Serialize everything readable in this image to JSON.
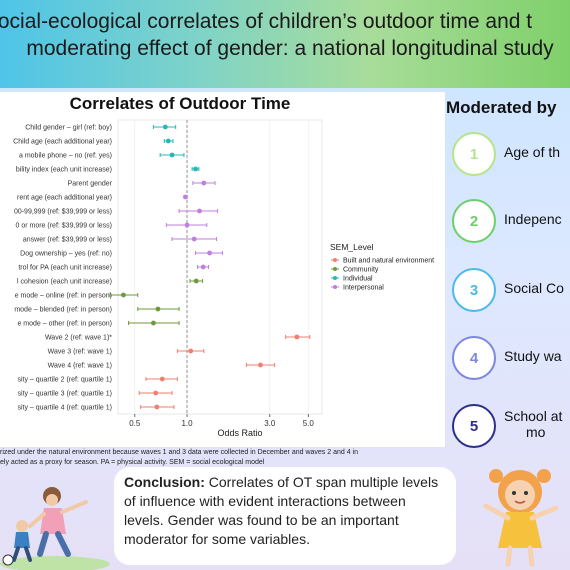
{
  "title": {
    "line1": "ocial-ecological correlates of children’s outdoor time and t",
    "line2": "moderating effect of gender: a national longitudinal study"
  },
  "chart_data": {
    "type": "scatter",
    "subtype": "forest-plot",
    "title": "Correlates of Outdoor Time",
    "xlabel": "Odds Ratio",
    "xscale": "log",
    "xlim": [
      0.4,
      6.0
    ],
    "xticks": [
      0.5,
      1.0,
      3.0,
      5.0
    ],
    "xtick_labels": [
      "0.5",
      "1.0",
      "3.0",
      "5.0"
    ],
    "reference_line": 1.0,
    "legend": {
      "title": "SEM_Level",
      "placement": "right",
      "entries": [
        {
          "name": "Built and natural environment",
          "color": "#f07f6d"
        },
        {
          "name": "Community",
          "color": "#6f9a3b"
        },
        {
          "name": "Individual",
          "color": "#25b8b8"
        },
        {
          "name": "Interpersonal",
          "color": "#c07ee0"
        }
      ]
    },
    "rows": [
      {
        "label": "Child gender – girl (ref: boy)",
        "or": 0.75,
        "lo": 0.64,
        "hi": 0.86,
        "level": "Individual"
      },
      {
        "label": "Child age (each additional year)",
        "or": 0.78,
        "lo": 0.74,
        "hi": 0.83,
        "level": "Individual"
      },
      {
        "label": "a mobile phone – no (ref: yes)",
        "or": 0.82,
        "lo": 0.7,
        "hi": 0.96,
        "level": "Individual"
      },
      {
        "label": "bility index (each unit increase)",
        "or": 1.12,
        "lo": 1.07,
        "hi": 1.17,
        "level": "Individual"
      },
      {
        "label": "Parent gender",
        "or": 1.25,
        "lo": 1.08,
        "hi": 1.45,
        "level": "Interpersonal"
      },
      {
        "label": "rent age (each additional year)",
        "or": 0.98,
        "lo": 0.96,
        "hi": 1.0,
        "level": "Interpersonal"
      },
      {
        "label": "00-99,999 (ref: $39,999 or less)",
        "or": 1.18,
        "lo": 0.9,
        "hi": 1.5,
        "level": "Interpersonal"
      },
      {
        "label": "0 or more (ref: $39,999 or less)",
        "or": 1.0,
        "lo": 0.76,
        "hi": 1.3,
        "level": "Interpersonal"
      },
      {
        "label": "answer (ref: $39,999 or less)",
        "or": 1.1,
        "lo": 0.82,
        "hi": 1.48,
        "level": "Interpersonal"
      },
      {
        "label": "Dog ownership – yes (ref: no)",
        "or": 1.35,
        "lo": 1.12,
        "hi": 1.6,
        "level": "Interpersonal"
      },
      {
        "label": "trol for PA (each unit increase)",
        "or": 1.24,
        "lo": 1.15,
        "hi": 1.33,
        "level": "Interpersonal"
      },
      {
        "label": "l cohesion (each unit increase)",
        "or": 1.13,
        "lo": 1.04,
        "hi": 1.23,
        "level": "Community"
      },
      {
        "label": "e mode – online (ref: in person)",
        "or": 0.43,
        "lo": 0.36,
        "hi": 0.52,
        "level": "Community"
      },
      {
        "label": "mode – blended (ref: in person)",
        "or": 0.68,
        "lo": 0.52,
        "hi": 0.9,
        "level": "Community"
      },
      {
        "label": "e mode – other (ref: in person)",
        "or": 0.64,
        "lo": 0.46,
        "hi": 0.9,
        "level": "Community"
      },
      {
        "label": "Wave 2 (ref: wave 1)*",
        "or": 4.3,
        "lo": 3.7,
        "hi": 5.1,
        "level": "Built and natural environment"
      },
      {
        "label": "Wave 3 (ref: wave 1)",
        "or": 1.05,
        "lo": 0.88,
        "hi": 1.25,
        "level": "Built and natural environment"
      },
      {
        "label": "Wave 4 (ref: wave 1)",
        "or": 2.65,
        "lo": 2.2,
        "hi": 3.2,
        "level": "Built and natural environment"
      },
      {
        "label": "sity – quartile 2 (ref: quartile 1)",
        "or": 0.72,
        "lo": 0.58,
        "hi": 0.88,
        "level": "Built and natural environment"
      },
      {
        "label": "sity – quartile 3 (ref: quartile 1)",
        "or": 0.66,
        "lo": 0.53,
        "hi": 0.82,
        "level": "Built and natural environment"
      },
      {
        "label": "sity – quartile 4 (ref: quartile 1)",
        "or": 0.67,
        "lo": 0.54,
        "hi": 0.84,
        "level": "Built and natural environment"
      }
    ]
  },
  "caption": {
    "line1": "rized under the natural environment because waves 1 and 3 data were collected in December and waves 2 and 4 in",
    "line2": "ely acted as a proxy for season. PA = physical activity. SEM = social ecological model"
  },
  "moderated": {
    "title": "Moderated by",
    "items": [
      {
        "num": "1",
        "label": "Age of th",
        "color": "#b6e38a"
      },
      {
        "num": "2",
        "label": "Indepenc",
        "color": "#6ccf6a"
      },
      {
        "num": "3",
        "label": "Social Co",
        "color": "#4cb9e8"
      },
      {
        "num": "4",
        "label": "Study wa",
        "color": "#7d86e0"
      },
      {
        "num": "5",
        "label": "School at",
        "label2": "mo",
        "color": "#2a2f8a"
      }
    ]
  },
  "conclusion": {
    "heading": "Conclusion:",
    "text": " Correlates of OT span multiple levels of influence with evident interactions between levels. Gender was found to be an important moderator for some variables."
  }
}
